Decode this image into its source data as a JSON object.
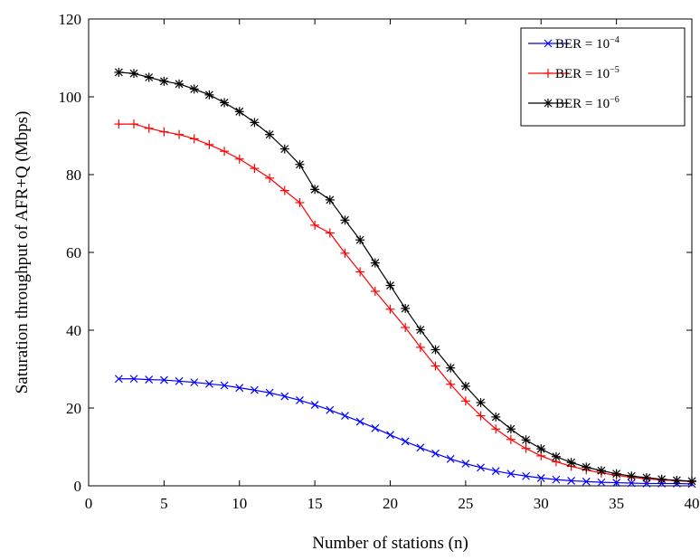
{
  "chart_data": {
    "type": "line",
    "title": "",
    "xlabel": "Number of stations (n)",
    "ylabel": "Saturation throughput of AFR+Q (Mbps)",
    "xlim": [
      0,
      40
    ],
    "ylim": [
      0,
      120
    ],
    "xticks": [
      "0",
      "5",
      "10",
      "15",
      "20",
      "25",
      "30",
      "35",
      "40"
    ],
    "yticks": [
      "0",
      "20",
      "40",
      "60",
      "80",
      "100",
      "120"
    ],
    "grid": false,
    "legend_position": "top-right",
    "x": [
      2,
      3,
      4,
      5,
      6,
      7,
      8,
      9,
      10,
      11,
      12,
      13,
      14,
      15,
      16,
      17,
      18,
      19,
      20,
      21,
      22,
      23,
      24,
      25,
      26,
      27,
      28,
      29,
      30,
      31,
      32,
      33,
      34,
      35,
      36,
      37,
      38,
      39,
      40
    ],
    "series": [
      {
        "name": "BER = 10",
        "exponent": "−4",
        "color": "#0000ff",
        "marker": "x",
        "values": [
          27.5,
          27.5,
          27.3,
          27.2,
          26.9,
          26.6,
          26.2,
          25.8,
          25.2,
          24.6,
          23.9,
          23.0,
          22.0,
          20.8,
          19.5,
          18.0,
          16.5,
          14.8,
          13.1,
          11.4,
          9.8,
          8.3,
          6.9,
          5.7,
          4.7,
          3.8,
          3.1,
          2.5,
          2.0,
          1.6,
          1.3,
          1.1,
          0.9,
          0.8,
          0.7,
          0.6,
          0.6,
          0.6,
          0.5
        ]
      },
      {
        "name": "BER = 10",
        "exponent": "−5",
        "color": "#ff0000",
        "marker": "+",
        "values": [
          93.0,
          93.0,
          91.9,
          91.0,
          90.3,
          89.2,
          87.7,
          86.0,
          84.0,
          81.6,
          79.1,
          75.9,
          72.8,
          67.0,
          65.0,
          59.8,
          55.0,
          50.0,
          45.4,
          40.7,
          35.6,
          30.8,
          26.1,
          21.8,
          18.0,
          14.6,
          11.9,
          9.6,
          7.7,
          6.2,
          5.0,
          4.1,
          3.3,
          2.7,
          2.2,
          1.8,
          1.5,
          1.3,
          1.1
        ]
      },
      {
        "name": "BER = 10",
        "exponent": "−6",
        "color": "#000000",
        "marker": "*",
        "values": [
          106.3,
          106.0,
          105.0,
          104.0,
          103.3,
          102.0,
          100.5,
          98.5,
          96.2,
          93.4,
          90.3,
          86.6,
          82.6,
          76.2,
          73.5,
          68.3,
          63.2,
          57.3,
          51.5,
          45.6,
          40.1,
          35.0,
          30.3,
          25.6,
          21.4,
          17.7,
          14.6,
          11.8,
          9.5,
          7.5,
          6.0,
          4.8,
          3.9,
          3.1,
          2.5,
          2.1,
          1.7,
          1.4,
          1.2
        ]
      }
    ]
  }
}
